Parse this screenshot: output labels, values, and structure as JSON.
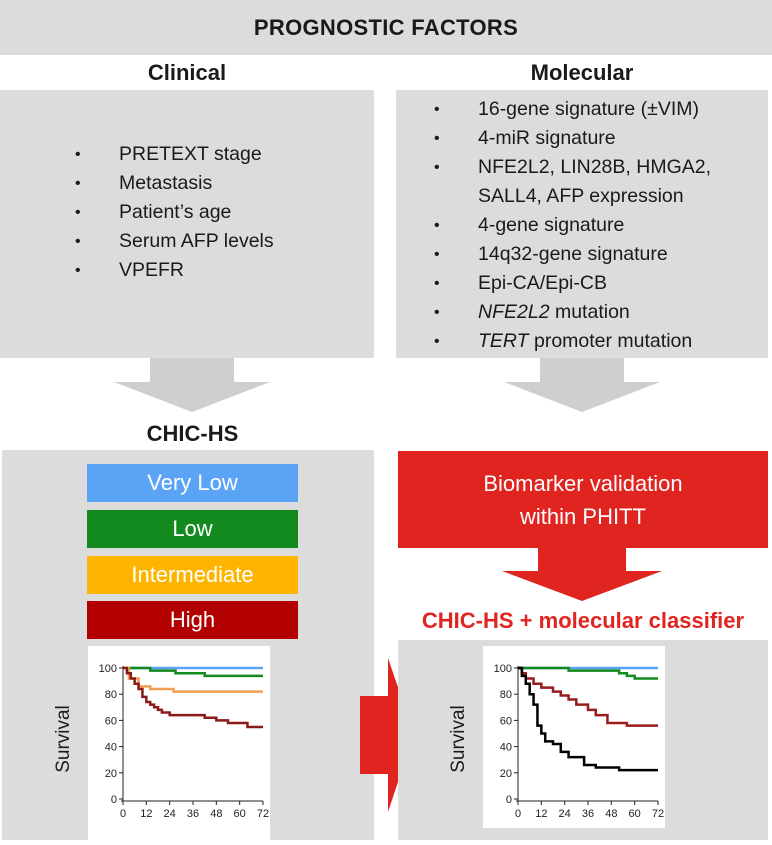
{
  "header": {
    "title": "PROGNOSTIC FACTORS"
  },
  "clinical": {
    "title": "Clinical",
    "items": [
      "PRETEXT stage",
      "Metastasis",
      "Patient’s age",
      "Serum AFP levels",
      "VPEFR"
    ]
  },
  "molecular": {
    "title": "Molecular",
    "items": [
      {
        "italic": "",
        "text": "16-gene signature (±VIM)"
      },
      {
        "italic": "",
        "text": "4-miR signature"
      },
      {
        "italic": "",
        "text": "NFE2L2, LIN28B, HMGA2, SALL4, AFP expression"
      },
      {
        "italic": "",
        "text": "4-gene signature"
      },
      {
        "italic": "",
        "text": "14q32-gene signature"
      },
      {
        "italic": "",
        "text": "Epi-CA/Epi-CB"
      },
      {
        "italic": "NFE2L2",
        "text": " mutation"
      },
      {
        "italic": "TERT",
        "text": " promoter mutation"
      }
    ]
  },
  "chichs": {
    "title": "CHIC-HS",
    "risk_groups": [
      {
        "label": "Very Low",
        "color": "#5ba3f5"
      },
      {
        "label": "Low",
        "color": "#138a1e"
      },
      {
        "label": "Intermediate",
        "color": "#ffb400"
      },
      {
        "label": "High",
        "color": "#b20000"
      }
    ]
  },
  "biomarker": {
    "line1": "Biomarker validation",
    "line2": "within PHITT"
  },
  "classifier": {
    "title": "CHIC-HS + molecular classifier"
  },
  "colors": {
    "red_arrow": "#e02420",
    "gray_arrow": "#cfcfcf",
    "panel_gray": "#dcdcdc"
  },
  "chart_data": [
    {
      "type": "line",
      "ylabel": "Survival",
      "xticks": [
        0,
        12,
        24,
        36,
        48,
        60,
        72
      ],
      "yticks": [
        0,
        20,
        40,
        60,
        80,
        100
      ],
      "xlim": [
        0,
        72
      ],
      "ylim": [
        0,
        100
      ],
      "series": [
        {
          "color": "#5ba3f5",
          "points": [
            [
              0,
              100
            ],
            [
              72,
              100
            ]
          ]
        },
        {
          "color": "#138a1e",
          "points": [
            [
              0,
              100
            ],
            [
              12,
              100
            ],
            [
              14,
              98
            ],
            [
              24,
              98
            ],
            [
              27,
              96
            ],
            [
              40,
              96
            ],
            [
              42,
              94
            ],
            [
              72,
              94
            ]
          ]
        },
        {
          "color": "#f0a050",
          "points": [
            [
              0,
              100
            ],
            [
              3,
              92
            ],
            [
              6,
              92
            ],
            [
              8,
              86
            ],
            [
              12,
              86
            ],
            [
              14,
              84
            ],
            [
              24,
              84
            ],
            [
              26,
              82
            ],
            [
              72,
              82
            ]
          ]
        },
        {
          "color": "#8b1a1a",
          "points": [
            [
              0,
              100
            ],
            [
              2,
              96
            ],
            [
              4,
              92
            ],
            [
              6,
              88
            ],
            [
              8,
              84
            ],
            [
              10,
              78
            ],
            [
              12,
              74
            ],
            [
              14,
              72
            ],
            [
              16,
              70
            ],
            [
              18,
              68
            ],
            [
              20,
              66
            ],
            [
              24,
              64
            ],
            [
              36,
              64
            ],
            [
              42,
              62
            ],
            [
              48,
              60
            ],
            [
              54,
              58
            ],
            [
              60,
              58
            ],
            [
              64,
              55
            ],
            [
              72,
              55
            ]
          ]
        }
      ]
    },
    {
      "type": "line",
      "ylabel": "Survival",
      "xticks": [
        0,
        12,
        24,
        36,
        48,
        60,
        72
      ],
      "yticks": [
        0,
        20,
        40,
        60,
        80,
        100
      ],
      "xlim": [
        0,
        72
      ],
      "ylim": [
        0,
        100
      ],
      "series": [
        {
          "color": "#5ba3f5",
          "points": [
            [
              0,
              100
            ],
            [
              72,
              100
            ]
          ]
        },
        {
          "color": "#138a1e",
          "points": [
            [
              0,
              100
            ],
            [
              24,
              100
            ],
            [
              26,
              98
            ],
            [
              48,
              98
            ],
            [
              52,
              96
            ],
            [
              56,
              94
            ],
            [
              60,
              92
            ],
            [
              72,
              92
            ]
          ]
        },
        {
          "color": "#9b1c1c",
          "points": [
            [
              0,
              100
            ],
            [
              2,
              96
            ],
            [
              4,
              92
            ],
            [
              8,
              88
            ],
            [
              12,
              85
            ],
            [
              18,
              82
            ],
            [
              22,
              79
            ],
            [
              26,
              76
            ],
            [
              30,
              72
            ],
            [
              36,
              68
            ],
            [
              40,
              64
            ],
            [
              46,
              58
            ],
            [
              50,
              58
            ],
            [
              56,
              56
            ],
            [
              72,
              56
            ]
          ]
        },
        {
          "color": "#000000",
          "points": [
            [
              0,
              100
            ],
            [
              2,
              94
            ],
            [
              4,
              88
            ],
            [
              6,
              80
            ],
            [
              8,
              72
            ],
            [
              10,
              56
            ],
            [
              12,
              50
            ],
            [
              14,
              44
            ],
            [
              18,
              42
            ],
            [
              22,
              36
            ],
            [
              26,
              32
            ],
            [
              30,
              32
            ],
            [
              34,
              26
            ],
            [
              40,
              24
            ],
            [
              48,
              24
            ],
            [
              52,
              22
            ],
            [
              72,
              22
            ]
          ]
        }
      ]
    }
  ]
}
